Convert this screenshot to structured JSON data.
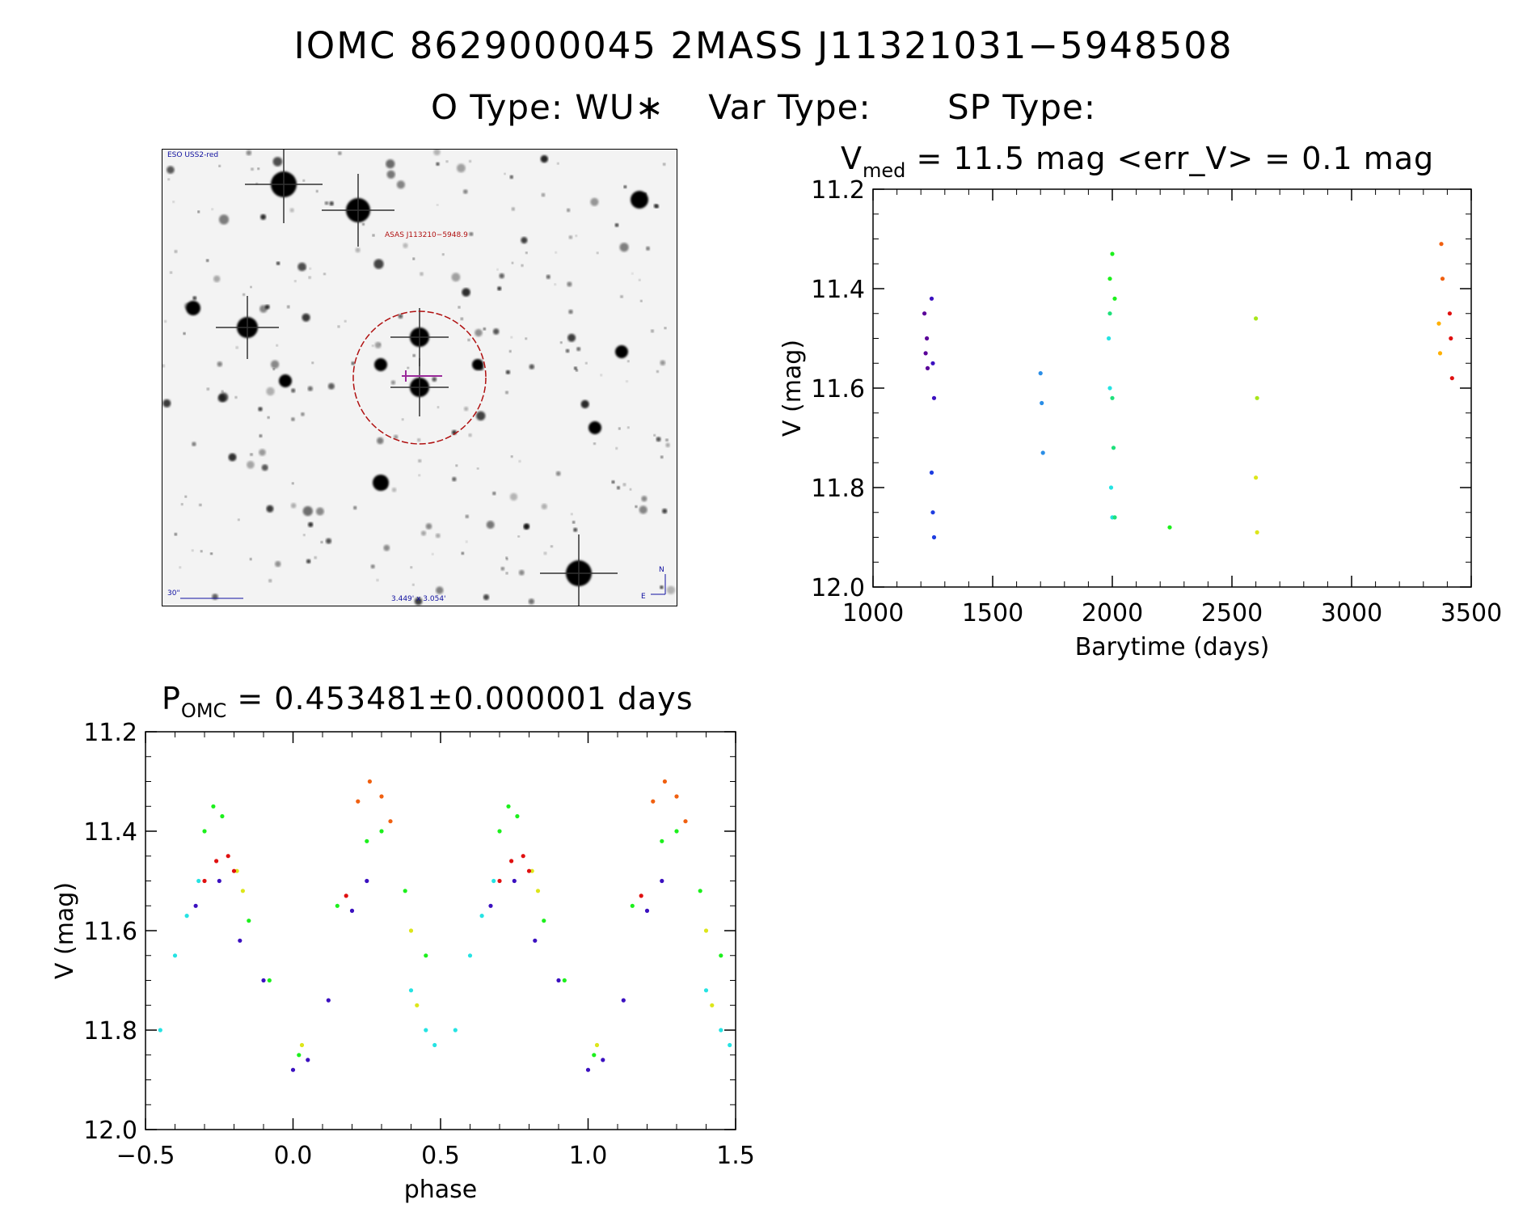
{
  "header": {
    "ids": [
      "IOMC 8629000045",
      "2MASS J11321031−5948508"
    ],
    "types": [
      "O Type: WU∗",
      "Var Type:",
      "SP Type:"
    ]
  },
  "finder": {
    "survey": "ESO USS2-red",
    "target_label": "ASAS J113210−5948.9",
    "scale_label": "30\"",
    "fov_label": "3.449' x 3.054'",
    "north": "N",
    "east": "E"
  },
  "colors": {
    "series": [
      "#5a0099",
      "#3b10c0",
      "#1e3de0",
      "#2b8ee6",
      "#25e3e3",
      "#1ee07a",
      "#1cf01c",
      "#a8e61a",
      "#dde61a",
      "#ffb000",
      "#f06010",
      "#e01010"
    ],
    "circle": "#b01010",
    "finder_text": "#1010a0"
  },
  "chart_data": [
    {
      "type": "scatter",
      "title": "V_med = 11.5 mag <err_V> = 0.1 mag",
      "title_parts": {
        "pre": "V",
        "sub": "med",
        "post": " = 11.5 mag <err_V> = 0.1 mag"
      },
      "xlabel": "Barytime (days)",
      "ylabel": "V (mag)",
      "xlim": [
        1000,
        3500
      ],
      "ylim": [
        12.0,
        11.2
      ],
      "x_ticks": [
        "1000",
        "1500",
        "2000",
        "2500",
        "3000",
        "3500"
      ],
      "y_ticks": [
        "11.2",
        "11.4",
        "11.6",
        "11.8",
        "12.0"
      ],
      "series": [
        {
          "color_index": 0,
          "x": [
            1215,
            1220,
            1225,
            1228
          ],
          "y": [
            11.45,
            11.53,
            11.5,
            11.56
          ]
        },
        {
          "color_index": 1,
          "x": [
            1245,
            1250,
            1255
          ],
          "y": [
            11.42,
            11.55,
            11.62
          ]
        },
        {
          "color_index": 2,
          "x": [
            1245,
            1250,
            1255
          ],
          "y": [
            11.77,
            11.85,
            11.9
          ]
        },
        {
          "color_index": 3,
          "x": [
            1700,
            1705,
            1710
          ],
          "y": [
            11.57,
            11.63,
            11.73
          ]
        },
        {
          "color_index": 4,
          "x": [
            1985,
            1990,
            1995,
            2000
          ],
          "y": [
            11.5,
            11.6,
            11.8,
            11.86
          ]
        },
        {
          "color_index": 5,
          "x": [
            1990,
            2000,
            2005,
            2010
          ],
          "y": [
            11.45,
            11.62,
            11.72,
            11.86
          ]
        },
        {
          "color_index": 6,
          "x": [
            1990,
            2000,
            2010,
            2240
          ],
          "y": [
            11.38,
            11.33,
            11.42,
            11.88
          ]
        },
        {
          "color_index": 7,
          "x": [
            2600,
            2605
          ],
          "y": [
            11.46,
            11.62
          ]
        },
        {
          "color_index": 8,
          "x": [
            2600,
            2605
          ],
          "y": [
            11.78,
            11.89
          ]
        },
        {
          "color_index": 9,
          "x": [
            3365,
            3370
          ],
          "y": [
            11.47,
            11.53
          ]
        },
        {
          "color_index": 10,
          "x": [
            3375,
            3380
          ],
          "y": [
            11.31,
            11.38
          ]
        },
        {
          "color_index": 11,
          "x": [
            3410,
            3415,
            3420
          ],
          "y": [
            11.45,
            11.5,
            11.58
          ]
        }
      ]
    },
    {
      "type": "scatter",
      "title": "P_OMC = 0.453481±0.000001 days",
      "title_parts": {
        "pre": "P",
        "sub": "OMC",
        "post": " = 0.453481±0.000001 days"
      },
      "xlabel": "phase",
      "ylabel": "V (mag)",
      "xlim": [
        -0.5,
        1.5
      ],
      "ylim": [
        12.0,
        11.2
      ],
      "x_ticks": [
        "−0.5",
        "0.0",
        "0.5",
        "1.0",
        "1.5"
      ],
      "y_ticks": [
        "11.2",
        "11.4",
        "11.6",
        "11.8",
        "12.0"
      ],
      "period_repeat": true,
      "series": [
        {
          "color_index": 1,
          "x": [
            -0.33,
            -0.25,
            -0.18,
            -0.1,
            0.0,
            0.05,
            0.12,
            0.2,
            0.25
          ],
          "y": [
            11.55,
            11.5,
            11.62,
            11.7,
            11.88,
            11.86,
            11.74,
            11.56,
            11.5
          ]
        },
        {
          "color_index": 4,
          "x": [
            -0.45,
            -0.4,
            -0.36,
            -0.32,
            0.4,
            0.45,
            0.48
          ],
          "y": [
            11.8,
            11.65,
            11.57,
            11.5,
            11.72,
            11.8,
            11.83
          ]
        },
        {
          "color_index": 6,
          "x": [
            -0.3,
            -0.27,
            -0.24,
            -0.15,
            -0.08,
            0.02,
            0.15,
            0.25,
            0.3,
            0.38,
            0.45
          ],
          "y": [
            11.4,
            11.35,
            11.37,
            11.58,
            11.7,
            11.85,
            11.55,
            11.42,
            11.4,
            11.52,
            11.65
          ]
        },
        {
          "color_index": 8,
          "x": [
            -0.19,
            -0.17,
            0.03,
            0.4,
            0.42
          ],
          "y": [
            11.48,
            11.52,
            11.83,
            11.6,
            11.75
          ]
        },
        {
          "color_index": 10,
          "x": [
            0.22,
            0.26,
            0.3,
            0.33
          ],
          "y": [
            11.34,
            11.3,
            11.33,
            11.38
          ]
        },
        {
          "color_index": 11,
          "x": [
            -0.3,
            -0.26,
            -0.22,
            -0.2,
            0.18
          ],
          "y": [
            11.5,
            11.46,
            11.45,
            11.48,
            11.53
          ]
        }
      ]
    }
  ]
}
